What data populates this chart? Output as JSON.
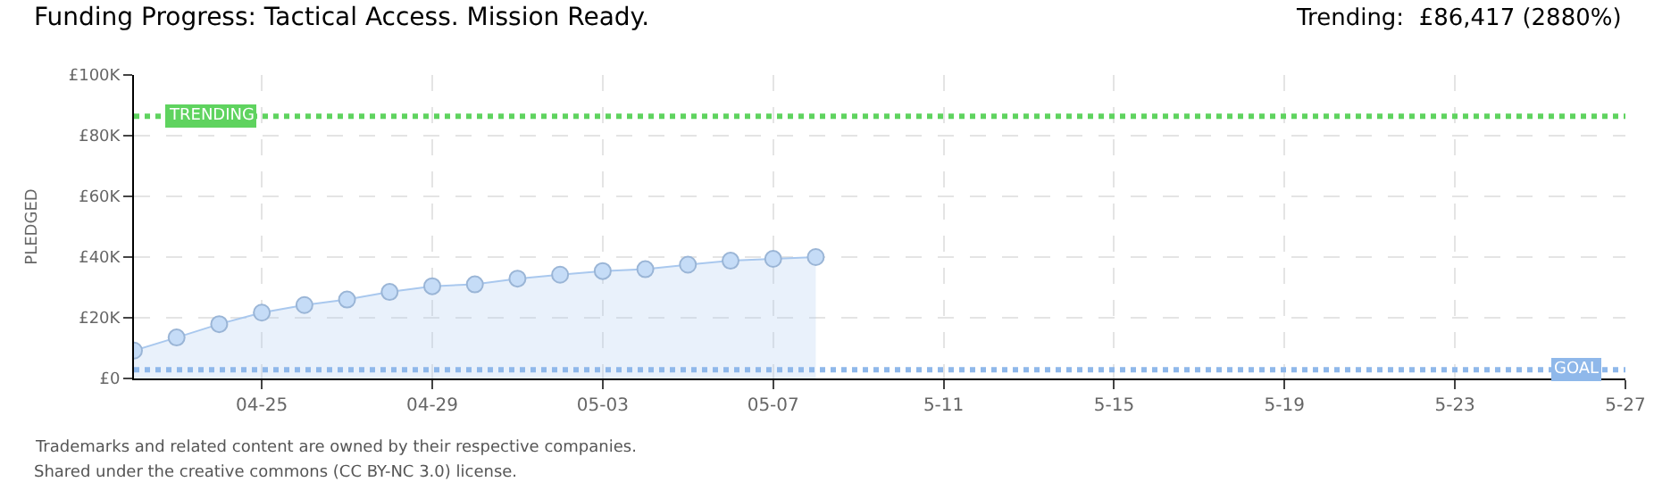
{
  "chart_data": {
    "type": "area",
    "title": "Funding Progress: Tactical Access. Mission Ready.",
    "subtitle": "Trending:  £86,417 (2880%)",
    "ylabel": "PLEDGED",
    "x": [
      "--04-22",
      "--04-23",
      "--04-24",
      "--04-25",
      "--04-26",
      "--04-27",
      "--04-28",
      "--04-29",
      "--04-30",
      "--05-01",
      "--05-02",
      "--05-03",
      "--05-04",
      "--05-05",
      "--05-06",
      "--05-07",
      "--05-08"
    ],
    "series": [
      {
        "color": "#a9c8ee",
        "values": [
          9200,
          13500,
          17900,
          21700,
          24200,
          26000,
          28500,
          30400,
          31000,
          32900,
          34200,
          35400,
          36000,
          37500,
          38800,
          39400,
          40000
        ]
      }
    ],
    "marker": "circle",
    "grid": true,
    "xlim": [
      "--04-22",
      "--05-27"
    ],
    "xticks": [
      {
        "value": "--04-25",
        "label": "04-25"
      },
      {
        "value": "--04-29",
        "label": "04-29"
      },
      {
        "value": "--05-03",
        "label": "05-03"
      },
      {
        "value": "--05-07",
        "label": "05-07"
      },
      {
        "value": "--05-11",
        "label": "5-11"
      },
      {
        "value": "--05-15",
        "label": "5-15"
      },
      {
        "value": "--05-19",
        "label": "5-19"
      },
      {
        "value": "--05-23",
        "label": "5-23"
      },
      {
        "value": "--05-27",
        "label": "5-27"
      }
    ],
    "ylim": [
      0,
      100000
    ],
    "yticks": [
      {
        "value": 0,
        "label": "£0"
      },
      {
        "value": 20000,
        "label": "£20K"
      },
      {
        "value": 40000,
        "label": "£40K"
      },
      {
        "value": 60000,
        "label": "£60K"
      },
      {
        "value": 80000,
        "label": "£80K"
      },
      {
        "value": 100000,
        "label": "£100K"
      }
    ],
    "ref_lines": [
      {
        "axis": "y",
        "value": 86417,
        "label": "TRENDING",
        "color": "#5fd35f",
        "line_style": "dotted"
      },
      {
        "axis": "y",
        "value": 2900,
        "label": "GOAL",
        "color": "#8fb8ea",
        "line_style": "dotted"
      }
    ],
    "annotations": [
      "Trademarks and related content are owned by their respective companies.",
      "Shared under the creative commons (CC BY-NC 3.0) license."
    ]
  }
}
